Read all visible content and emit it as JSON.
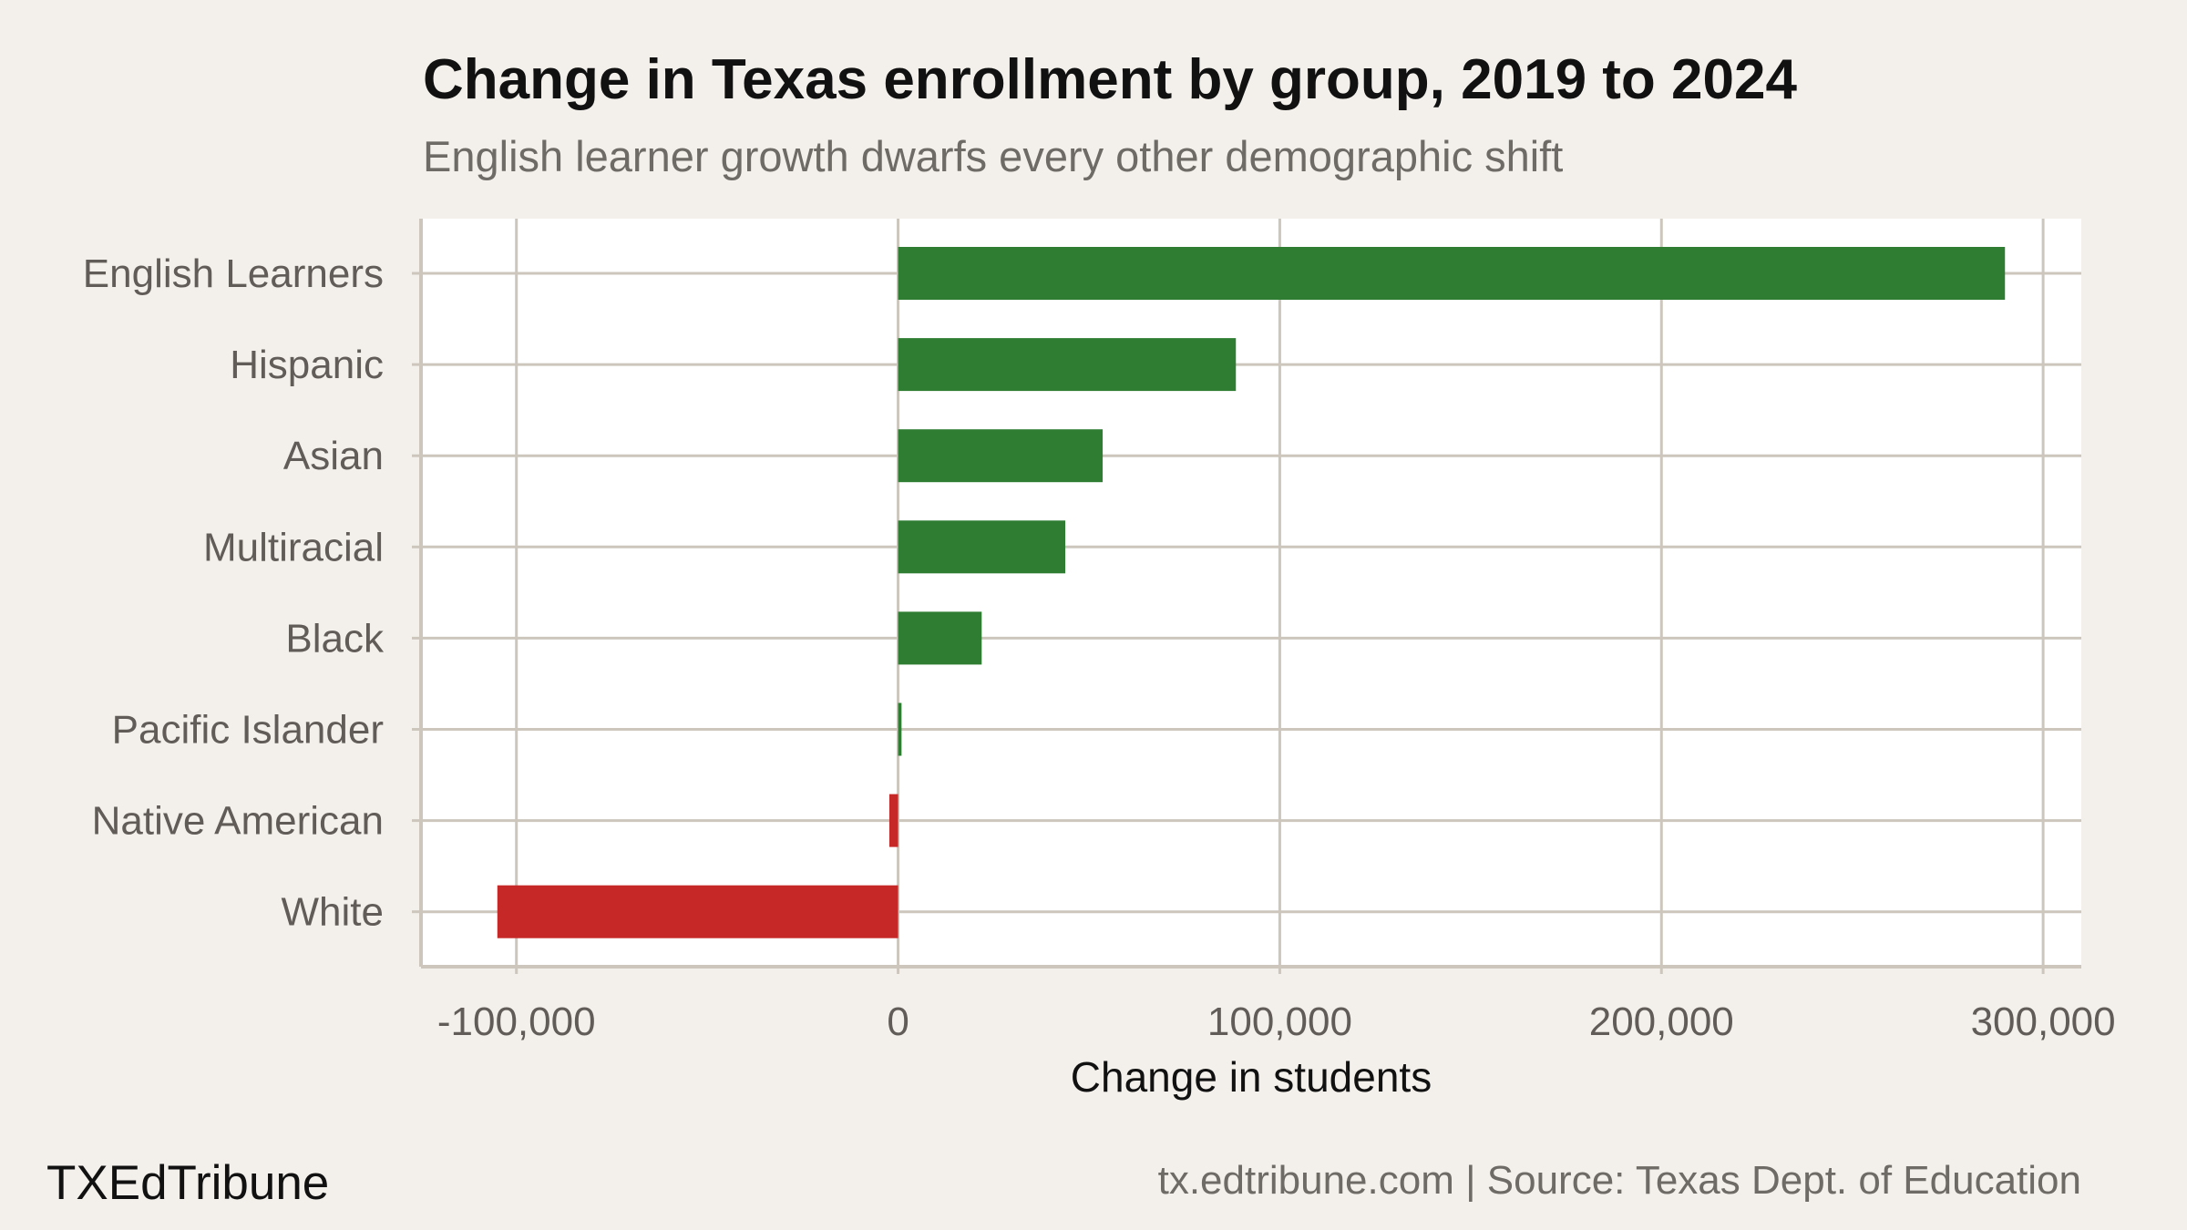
{
  "chart_data": {
    "type": "bar",
    "orientation": "horizontal",
    "title": "Change in Texas enrollment by group, 2019 to 2024",
    "subtitle": "English learner growth dwarfs every other demographic shift",
    "xlabel": "Change in students",
    "ylabel": "",
    "categories": [
      "English Learners",
      "Hispanic",
      "Asian",
      "Multiracial",
      "Black",
      "Pacific Islander",
      "Native American",
      "White"
    ],
    "values": [
      290000,
      88500,
      53600,
      43800,
      21900,
      900,
      -2300,
      -105000
    ],
    "xlim": [
      -125000,
      310000
    ],
    "xticks": [
      -100000,
      0,
      100000,
      200000,
      300000
    ],
    "xtick_labels": [
      "-100,000",
      "0",
      "100,000",
      "200,000",
      "300,000"
    ],
    "grid": true,
    "colors": {
      "positive": "#2e7d32",
      "negative": "#c62828",
      "background": "#f3f0eb",
      "panel": "#ffffff",
      "grid": "#ccc6bd"
    }
  },
  "footer": {
    "brand": "TXEdTribune",
    "source": "tx.edtribune.com | Source: Texas Dept. of Education"
  }
}
